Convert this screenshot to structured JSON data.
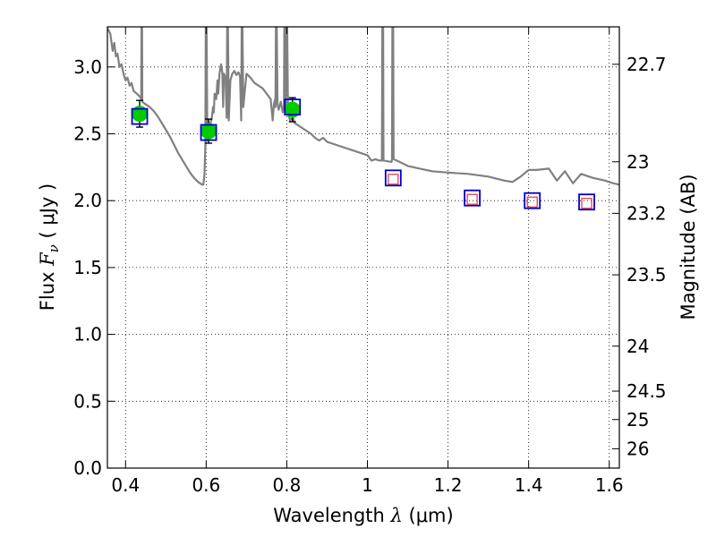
{
  "chart_data": {
    "type": "scatter",
    "xlabel": "Wavelength  λ (μm)",
    "ylabel": "Flux  F_ν  ( μJy )",
    "ylabel_parts": {
      "prefix": "Flux  ",
      "symbol": "F",
      "subscript": "ν",
      "unit": "  ( μJy )"
    },
    "xlabel_parts": {
      "prefix": "Wavelength  ",
      "symbol": "λ",
      "unit": " (μm)"
    },
    "y2label": "Magnitude (AB)",
    "xlim": [
      0.355,
      1.625
    ],
    "ylim": [
      0.0,
      3.3
    ],
    "grid": true,
    "x_ticks": [
      {
        "value": 0.4,
        "label": "0.4"
      },
      {
        "value": 0.6,
        "label": "0.6"
      },
      {
        "value": 0.8,
        "label": "0.8"
      },
      {
        "value": 1.0,
        "label": "1"
      },
      {
        "value": 1.2,
        "label": "1.2"
      },
      {
        "value": 1.4,
        "label": "1.4"
      },
      {
        "value": 1.6,
        "label": "1.6"
      }
    ],
    "y_ticks": [
      {
        "value": 0.0,
        "label": "0.0"
      },
      {
        "value": 0.5,
        "label": "0.5"
      },
      {
        "value": 1.0,
        "label": "1.0"
      },
      {
        "value": 1.5,
        "label": "1.5"
      },
      {
        "value": 2.0,
        "label": "2.0"
      },
      {
        "value": 2.5,
        "label": "2.5"
      },
      {
        "value": 3.0,
        "label": "3.0"
      }
    ],
    "y2_ticks": [
      {
        "value": 22.7,
        "label": "22.7"
      },
      {
        "value": 23.0,
        "label": "23"
      },
      {
        "value": 23.2,
        "label": "23.2"
      },
      {
        "value": 23.5,
        "label": "23.5"
      },
      {
        "value": 24.0,
        "label": "24"
      },
      {
        "value": 24.5,
        "label": "24.5"
      },
      {
        "value": 25.0,
        "label": "25"
      },
      {
        "value": 26.0,
        "label": "26"
      }
    ],
    "series": [
      {
        "type": "line",
        "color": "#808080",
        "points": [
          [
            0.355,
            3.29
          ],
          [
            0.362,
            3.25
          ],
          [
            0.368,
            3.12
          ],
          [
            0.372,
            3.18
          ],
          [
            0.376,
            3.08
          ],
          [
            0.38,
            3.1
          ],
          [
            0.385,
            3.0
          ],
          [
            0.39,
            3.02
          ],
          [
            0.395,
            2.95
          ],
          [
            0.4,
            2.9
          ],
          [
            0.405,
            2.92
          ],
          [
            0.41,
            2.86
          ],
          [
            0.415,
            2.88
          ],
          [
            0.42,
            2.82
          ],
          [
            0.428,
            2.8
          ],
          [
            0.435,
            2.78
          ],
          [
            0.439,
            2.76
          ],
          [
            0.4395,
            3.3
          ],
          [
            0.441,
            3.3
          ],
          [
            0.4415,
            2.74
          ],
          [
            0.45,
            2.72
          ],
          [
            0.46,
            2.7
          ],
          [
            0.47,
            2.67
          ],
          [
            0.48,
            2.63
          ],
          [
            0.49,
            2.58
          ],
          [
            0.5,
            2.53
          ],
          [
            0.51,
            2.48
          ],
          [
            0.52,
            2.42
          ],
          [
            0.53,
            2.36
          ],
          [
            0.54,
            2.31
          ],
          [
            0.55,
            2.26
          ],
          [
            0.56,
            2.21
          ],
          [
            0.57,
            2.17
          ],
          [
            0.58,
            2.14
          ],
          [
            0.59,
            2.12
          ],
          [
            0.593,
            2.12
          ],
          [
            0.596,
            2.2
          ],
          [
            0.598,
            2.4
          ],
          [
            0.599,
            3.3
          ],
          [
            0.601,
            3.3
          ],
          [
            0.603,
            2.45
          ],
          [
            0.607,
            2.52
          ],
          [
            0.611,
            2.58
          ],
          [
            0.614,
            2.62
          ],
          [
            0.617,
            2.7
          ],
          [
            0.619,
            2.66
          ],
          [
            0.621,
            2.8
          ],
          [
            0.625,
            2.76
          ],
          [
            0.628,
            2.9
          ],
          [
            0.63,
            2.8
          ],
          [
            0.633,
            2.95
          ],
          [
            0.637,
            3.02
          ],
          [
            0.64,
            2.96
          ],
          [
            0.642,
            2.7
          ],
          [
            0.644,
            2.95
          ],
          [
            0.648,
            2.92
          ],
          [
            0.651,
            2.62
          ],
          [
            0.652,
            3.3
          ],
          [
            0.654,
            3.3
          ],
          [
            0.656,
            2.6
          ],
          [
            0.66,
            2.9
          ],
          [
            0.665,
            2.95
          ],
          [
            0.67,
            2.97
          ],
          [
            0.675,
            2.94
          ],
          [
            0.68,
            2.96
          ],
          [
            0.684,
            2.93
          ],
          [
            0.687,
            2.6
          ],
          [
            0.688,
            3.3
          ],
          [
            0.69,
            3.3
          ],
          [
            0.692,
            2.7
          ],
          [
            0.7,
            2.95
          ],
          [
            0.71,
            2.92
          ],
          [
            0.72,
            2.88
          ],
          [
            0.73,
            2.86
          ],
          [
            0.74,
            2.84
          ],
          [
            0.75,
            2.8
          ],
          [
            0.76,
            2.76
          ],
          [
            0.765,
            2.6
          ],
          [
            0.768,
            2.72
          ],
          [
            0.771,
            2.76
          ],
          [
            0.772,
            2.7
          ],
          [
            0.773,
            3.3
          ],
          [
            0.775,
            3.3
          ],
          [
            0.777,
            2.72
          ],
          [
            0.78,
            2.68
          ],
          [
            0.785,
            2.74
          ],
          [
            0.79,
            2.66
          ],
          [
            0.793,
            2.71
          ],
          [
            0.794,
            3.3
          ],
          [
            0.796,
            3.3
          ],
          [
            0.797,
            2.65
          ],
          [
            0.799,
            3.3
          ],
          [
            0.801,
            3.3
          ],
          [
            0.803,
            2.66
          ],
          [
            0.808,
            2.6
          ],
          [
            0.815,
            2.62
          ],
          [
            0.82,
            2.58
          ],
          [
            0.83,
            2.56
          ],
          [
            0.84,
            2.54
          ],
          [
            0.85,
            2.52
          ],
          [
            0.86,
            2.5
          ],
          [
            0.87,
            2.47
          ],
          [
            0.88,
            2.45
          ],
          [
            0.89,
            2.47
          ],
          [
            0.9,
            2.44
          ],
          [
            0.92,
            2.42
          ],
          [
            0.94,
            2.4
          ],
          [
            0.96,
            2.38
          ],
          [
            0.98,
            2.36
          ],
          [
            1.0,
            2.34
          ],
          [
            1.01,
            2.3
          ],
          [
            1.02,
            2.31
          ],
          [
            1.03,
            2.3
          ],
          [
            1.036,
            2.3
          ],
          [
            1.037,
            3.3
          ],
          [
            1.039,
            3.3
          ],
          [
            1.04,
            2.3
          ],
          [
            1.06,
            2.29
          ],
          [
            1.061,
            2.31
          ],
          [
            1.062,
            3.3
          ],
          [
            1.064,
            3.3
          ],
          [
            1.065,
            2.31
          ],
          [
            1.08,
            2.29
          ],
          [
            1.1,
            2.26
          ],
          [
            1.13,
            2.24
          ],
          [
            1.16,
            2.22
          ],
          [
            1.2,
            2.21
          ],
          [
            1.25,
            2.2
          ],
          [
            1.3,
            2.18
          ],
          [
            1.34,
            2.15
          ],
          [
            1.36,
            2.14
          ],
          [
            1.38,
            2.18
          ],
          [
            1.4,
            2.23
          ],
          [
            1.42,
            2.23
          ],
          [
            1.45,
            2.24
          ],
          [
            1.47,
            2.15
          ],
          [
            1.49,
            2.22
          ],
          [
            1.51,
            2.13
          ],
          [
            1.53,
            2.2
          ],
          [
            1.56,
            2.17
          ],
          [
            1.59,
            2.15
          ],
          [
            1.61,
            2.13
          ],
          [
            1.625,
            2.12
          ]
        ]
      },
      {
        "type": "errorbar",
        "marker": "circle",
        "color": "#00cc00",
        "points": [
          {
            "x": 0.435,
            "y": 2.65,
            "err": 0.1
          },
          {
            "x": 0.606,
            "y": 2.52,
            "err": 0.09
          },
          {
            "x": 0.814,
            "y": 2.68,
            "err": 0.09
          }
        ]
      },
      {
        "type": "scatter",
        "marker": "square",
        "color": "#0000cc",
        "points": [
          [
            0.435,
            2.63
          ],
          [
            0.606,
            2.51
          ],
          [
            0.814,
            2.7
          ],
          [
            1.064,
            2.17
          ],
          [
            1.26,
            2.02
          ],
          [
            1.409,
            2.0
          ],
          [
            1.544,
            1.99
          ]
        ]
      },
      {
        "type": "scatter",
        "marker": "square-small",
        "color": "#dd3344",
        "points": [
          [
            1.064,
            2.16
          ],
          [
            1.26,
            2.01
          ],
          [
            1.409,
            1.99
          ],
          [
            1.544,
            1.98
          ]
        ]
      }
    ]
  }
}
